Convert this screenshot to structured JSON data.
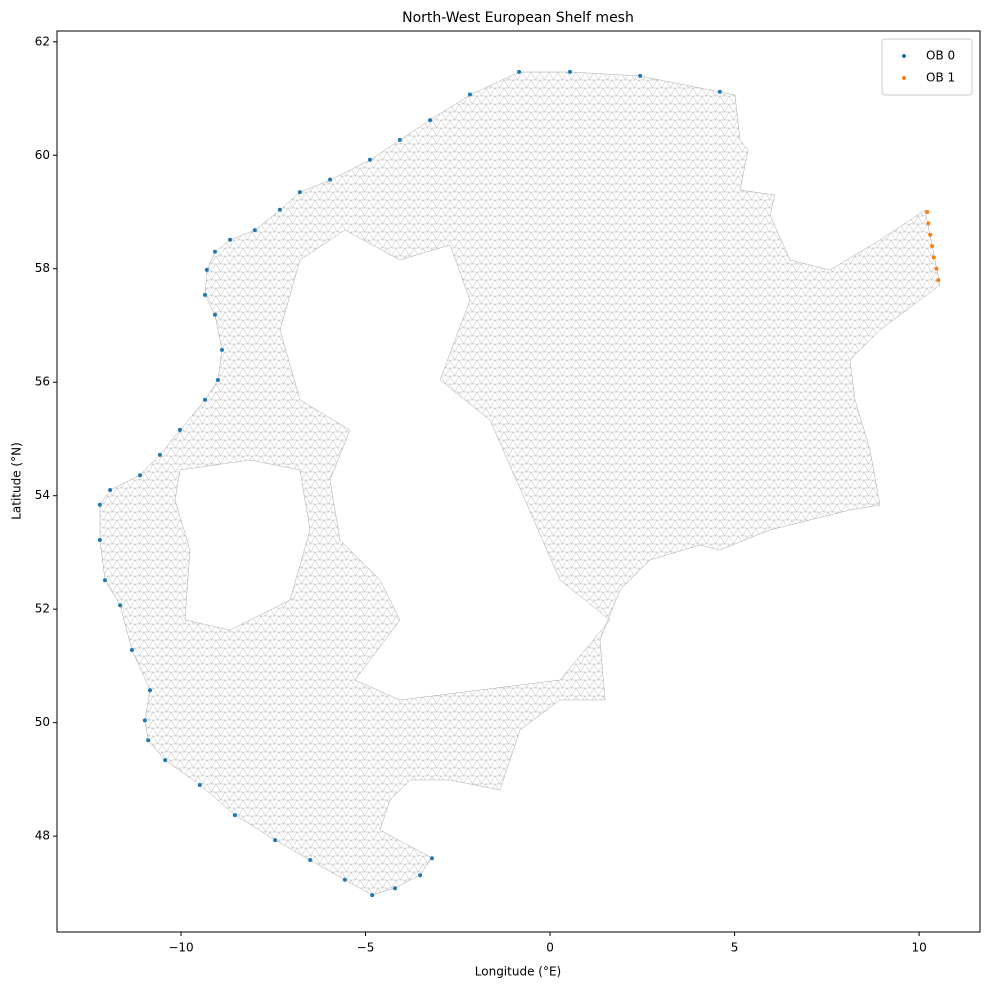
{
  "chart_data": {
    "type": "scatter",
    "title": "North-West European Shelf mesh",
    "x_label": "Longitude (°E)",
    "y_label": "Latitude (°N)",
    "xlim": [
      -13.36,
      11.65
    ],
    "ylim": [
      46.31,
      62.19
    ],
    "xticks": [
      {
        "value": -10,
        "label": "−10"
      },
      {
        "value": -5,
        "label": "−5"
      },
      0,
      5,
      10
    ],
    "yticks": [
      48,
      50,
      52,
      54,
      56,
      58,
      60,
      62
    ],
    "legend": "upper right",
    "series": [
      {
        "name": "OB 0",
        "color": "#1f77b4",
        "x": [
          4.6,
          2.44,
          0.54,
          -0.84,
          -2.17,
          -3.25,
          -4.07,
          -4.88,
          -5.96,
          -6.78,
          -7.32,
          -8.0,
          -8.67,
          -9.08,
          -9.3,
          -9.35,
          -9.08,
          -8.89,
          -9.0,
          -9.35,
          -10.03,
          -10.57,
          -11.11,
          -11.92,
          -12.2,
          -12.2,
          -12.06,
          -11.65,
          -11.33,
          -10.84,
          -10.98,
          -10.89,
          -10.43,
          -9.49,
          -8.54,
          -7.45,
          -6.5,
          -5.56,
          -4.82,
          -4.2,
          -3.52,
          -3.2
        ],
        "values": [
          61.12,
          61.4,
          61.47,
          61.47,
          61.07,
          60.62,
          60.27,
          59.92,
          59.57,
          59.35,
          59.04,
          58.68,
          58.51,
          58.3,
          57.98,
          57.54,
          57.19,
          56.57,
          56.04,
          55.69,
          55.16,
          54.72,
          54.36,
          54.1,
          53.84,
          53.22,
          52.51,
          52.07,
          51.28,
          50.57,
          50.04,
          49.69,
          49.34,
          48.9,
          48.37,
          47.93,
          47.58,
          47.23,
          46.96,
          47.08,
          47.31,
          47.61
        ]
      },
      {
        "name": "OB 1",
        "color": "#ff7f0e",
        "x": [
          10.22,
          10.25,
          10.3,
          10.35,
          10.4,
          10.47,
          10.52
        ],
        "values": [
          59.0,
          58.8,
          58.6,
          58.4,
          58.2,
          58.0,
          57.8
        ]
      }
    ]
  }
}
